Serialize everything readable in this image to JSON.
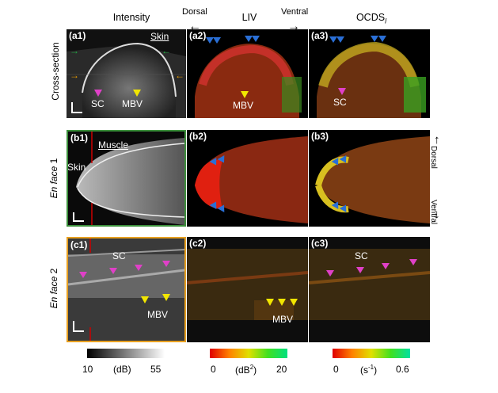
{
  "columns": {
    "intensity": "Intensity",
    "liv": "LIV",
    "ocds": "OCDS",
    "ocds_sub": "l"
  },
  "directions": {
    "dorsal": "Dorsal",
    "ventral": "Ventral"
  },
  "rows": {
    "cross": "Cross-section",
    "enface1_a": "En face",
    "enface1_b": "1",
    "enface2_a": "En face",
    "enface2_b": "2"
  },
  "panels": {
    "a1": "(a1)",
    "a2": "(a2)",
    "a3": "(a3)",
    "b1": "(b1)",
    "b2": "(b2)",
    "b3": "(b3)",
    "c1": "(c1)",
    "c2": "(c2)",
    "c3": "(c3)"
  },
  "annotations": {
    "skin": "Skin",
    "sc": "SC",
    "mbv": "MBV",
    "muscle": "Muscle"
  },
  "colorbars": {
    "intensity": {
      "min": "10",
      "unit": "(dB)",
      "max": "55"
    },
    "liv": {
      "min": "0",
      "unit": "(dB",
      "unit_sup": "2",
      "unit_end": ")",
      "max": "20"
    },
    "ocds": {
      "min": "0",
      "unit": "(s",
      "unit_sup": "-1",
      "unit_end": ")",
      "max": "0.6"
    }
  },
  "colors": {
    "row1_border": "#3b8f3b",
    "row2_border": "#e8a020",
    "blue_marker": "#2a6fd6",
    "pink_marker": "#e040c8",
    "yellow_marker": "#f2e600"
  }
}
